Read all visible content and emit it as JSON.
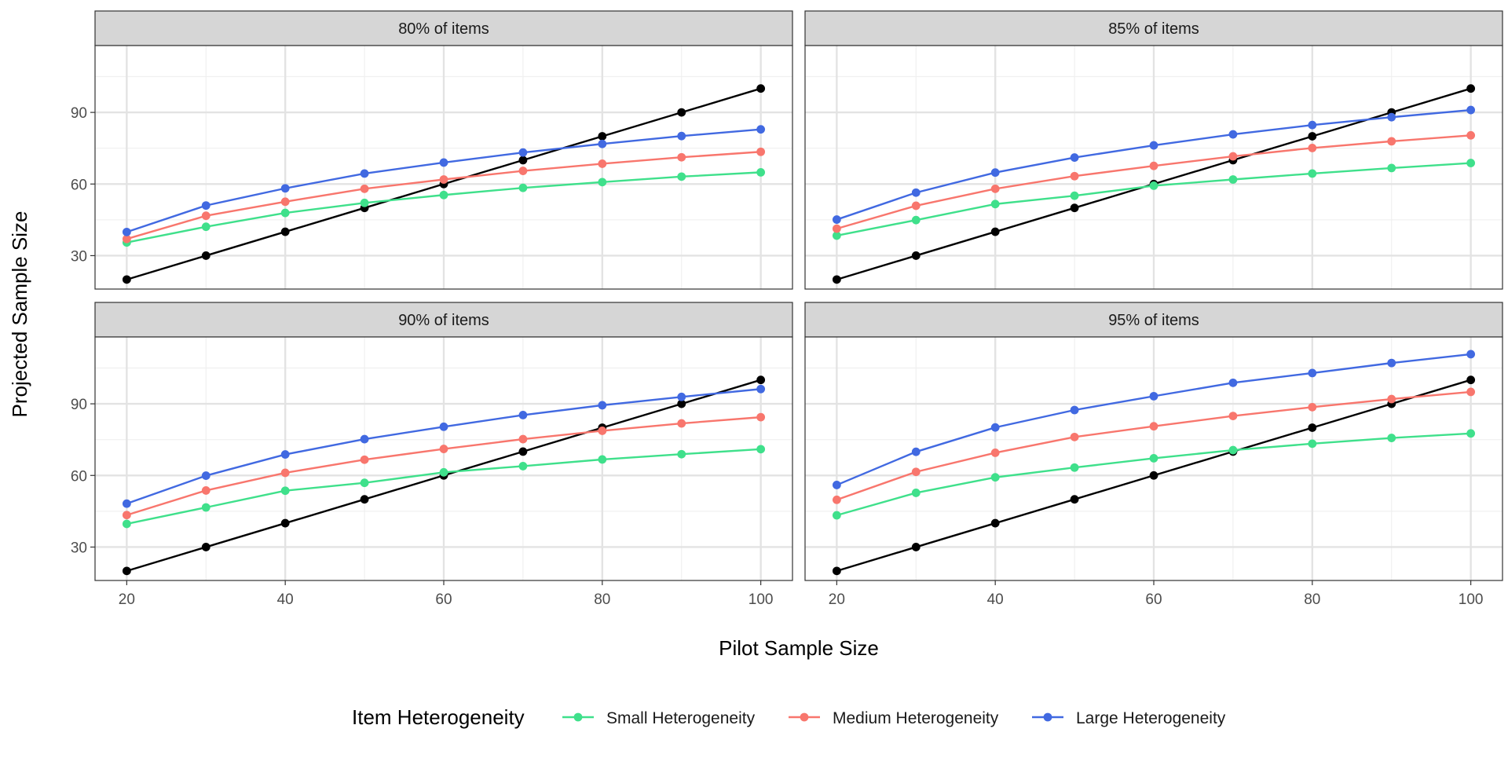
{
  "chart_data": {
    "type": "line",
    "facet_labels": [
      "80% of items",
      "85% of items",
      "90% of items",
      "95% of items"
    ],
    "xlabel": "Pilot Sample Size",
    "ylabel": "Projected Sample Size",
    "x_ticks": [
      20,
      40,
      60,
      80,
      100
    ],
    "y_ticks": [
      30,
      60,
      90
    ],
    "xlim": [
      16,
      104
    ],
    "ylim": [
      16,
      118
    ],
    "legend": {
      "title": "Item Heterogeneity",
      "position": "bottom",
      "entries": [
        "Small Heterogeneity",
        "Medium Heterogeneity",
        "Large Heterogeneity"
      ]
    },
    "colors": {
      "small": "#3fe08b",
      "medium": "#f8766d",
      "large": "#4169e1",
      "reference": "#000000"
    },
    "x": [
      20,
      30,
      40,
      50,
      60,
      70,
      80,
      90,
      100
    ],
    "panels": [
      {
        "facet": "80% of items",
        "reference": [
          20,
          30,
          40,
          50,
          60,
          70,
          80,
          90,
          100
        ],
        "series": [
          {
            "name": "Small Heterogeneity",
            "values": [
              35.5,
              42.1,
              47.9,
              52.1,
              55.4,
              58.4,
              60.8,
              63.1,
              64.9
            ]
          },
          {
            "name": "Medium Heterogeneity",
            "values": [
              37.0,
              46.7,
              52.6,
              58.0,
              61.9,
              65.5,
              68.5,
              71.2,
              73.5
            ]
          },
          {
            "name": "Large Heterogeneity",
            "values": [
              39.9,
              51.0,
              58.2,
              64.4,
              69.0,
              73.2,
              76.8,
              80.1,
              82.9
            ]
          }
        ]
      },
      {
        "facet": "85% of items",
        "reference": [
          20,
          30,
          40,
          50,
          60,
          70,
          80,
          90,
          100
        ],
        "series": [
          {
            "name": "Small Heterogeneity",
            "values": [
              38.4,
              44.9,
              51.6,
              55.1,
              59.3,
              61.9,
              64.4,
              66.7,
              68.8
            ]
          },
          {
            "name": "Medium Heterogeneity",
            "values": [
              41.3,
              50.9,
              58.0,
              63.3,
              67.6,
              71.6,
              75.1,
              77.9,
              80.4
            ]
          },
          {
            "name": "Large Heterogeneity",
            "values": [
              45.1,
              56.4,
              64.8,
              71.1,
              76.2,
              80.8,
              84.7,
              88.0,
              91.0
            ]
          }
        ]
      },
      {
        "facet": "90% of items",
        "reference": [
          20,
          30,
          40,
          50,
          60,
          70,
          80,
          90,
          100
        ],
        "series": [
          {
            "name": "Small Heterogeneity",
            "values": [
              39.7,
              46.6,
              53.6,
              56.9,
              61.3,
              63.9,
              66.7,
              68.9,
              71.0
            ]
          },
          {
            "name": "Medium Heterogeneity",
            "values": [
              43.4,
              53.7,
              61.1,
              66.6,
              71.1,
              75.2,
              78.7,
              81.8,
              84.4
            ]
          },
          {
            "name": "Large Heterogeneity",
            "values": [
              48.2,
              59.9,
              68.8,
              75.2,
              80.4,
              85.3,
              89.4,
              92.9,
              96.2
            ]
          }
        ]
      },
      {
        "facet": "95% of items",
        "reference": [
          20,
          30,
          40,
          50,
          60,
          70,
          80,
          90,
          100
        ],
        "series": [
          {
            "name": "Small Heterogeneity",
            "values": [
              43.3,
              52.7,
              59.2,
              63.3,
              67.2,
              70.6,
              73.3,
              75.7,
              77.6
            ]
          },
          {
            "name": "Medium Heterogeneity",
            "values": [
              49.8,
              61.5,
              69.5,
              76.1,
              80.6,
              84.9,
              88.6,
              92.0,
              95.0
            ]
          },
          {
            "name": "Large Heterogeneity",
            "values": [
              56.0,
              69.9,
              80.1,
              87.4,
              93.2,
              98.8,
              102.9,
              107.1,
              110.8
            ]
          }
        ]
      }
    ]
  }
}
